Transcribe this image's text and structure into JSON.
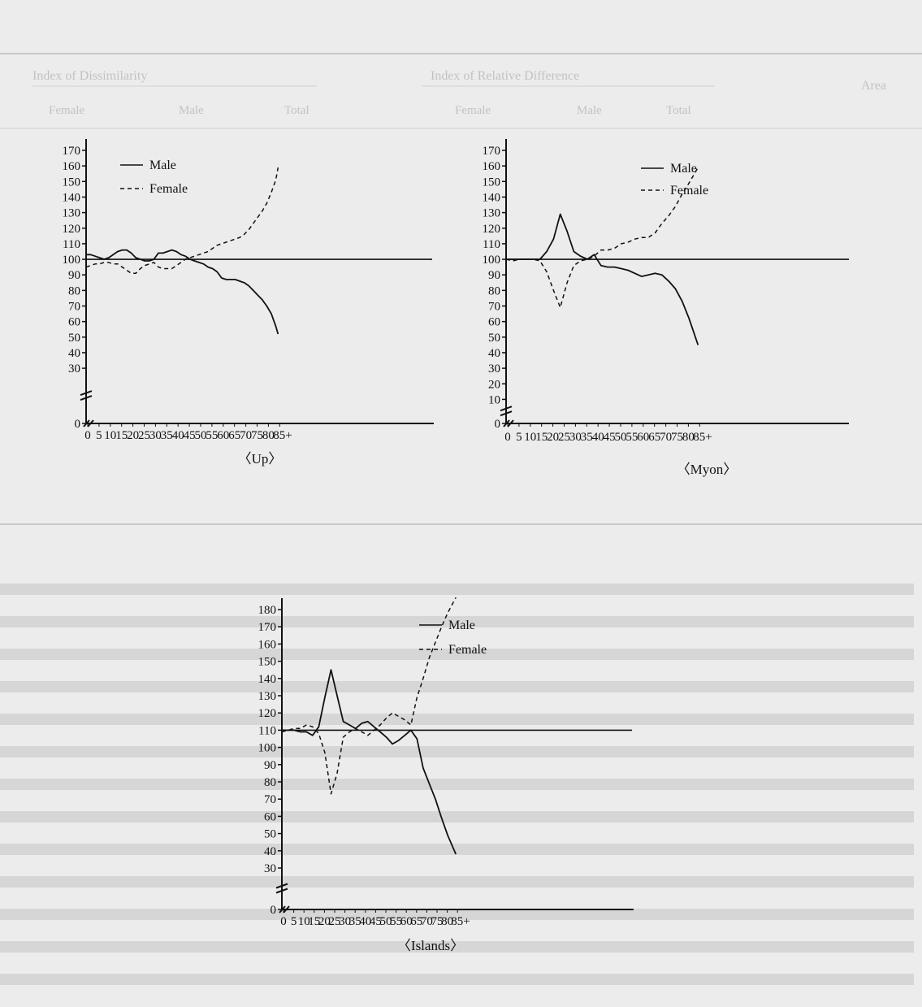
{
  "background": {
    "table_header": [
      "Area",
      "Index of Relative Difference",
      "Index of Dissimilarity"
    ],
    "table_subheader": [
      "Total",
      "Male",
      "Female",
      "Total",
      "Male",
      "Female"
    ]
  },
  "colors": {
    "line": "#111111",
    "background": "#ececec",
    "ghost": "#c4c4c4"
  },
  "chart_data": [
    {
      "type": "line",
      "title": "〈Up〉",
      "x_tick_labels": [
        "0",
        "5",
        "10",
        "15",
        "20",
        "25",
        "30",
        "35",
        "40",
        "45",
        "50",
        "55",
        "60",
        "65",
        "70",
        "75",
        "80",
        "85+"
      ],
      "y_tick_labels": [
        "170",
        "160",
        "150",
        "140",
        "130",
        "120",
        "110",
        "100",
        "90",
        "80",
        "70",
        "60",
        "50",
        "40",
        "30",
        "0"
      ],
      "legend": [
        "Male",
        "Female"
      ],
      "xlim": [
        0,
        85
      ],
      "reference_line": 100,
      "series": [
        {
          "name": "Male",
          "style": "solid",
          "x": [
            0,
            2,
            4,
            6,
            8,
            10,
            12,
            14,
            16,
            18,
            20,
            22,
            24,
            26,
            28,
            30,
            32,
            34,
            36,
            38,
            40,
            42,
            44,
            46,
            48,
            50,
            52,
            54,
            56,
            58,
            60,
            62,
            64,
            66,
            68,
            70,
            72,
            74,
            76,
            78,
            80,
            82,
            84,
            85
          ],
          "y": [
            103,
            103,
            102,
            101,
            100,
            101,
            103,
            105,
            106,
            106,
            104,
            101,
            100,
            99,
            99,
            100,
            104,
            104,
            105,
            106,
            105,
            103,
            102,
            100,
            99,
            98,
            97,
            95,
            94,
            92,
            88,
            87,
            87,
            87,
            86,
            85,
            83,
            80,
            77,
            74,
            70,
            65,
            57,
            52
          ]
        },
        {
          "name": "Female",
          "style": "dashed",
          "x": [
            0,
            2,
            4,
            6,
            8,
            10,
            12,
            14,
            16,
            18,
            20,
            22,
            24,
            26,
            28,
            30,
            32,
            34,
            36,
            38,
            40,
            42,
            44,
            46,
            48,
            50,
            52,
            54,
            56,
            58,
            60,
            62,
            64,
            66,
            68,
            70,
            72,
            74,
            76,
            78,
            80,
            82,
            84,
            85
          ],
          "y": [
            95,
            96,
            97,
            97,
            98,
            98,
            97,
            97,
            95,
            93,
            91,
            91,
            94,
            96,
            97,
            98,
            95,
            94,
            94,
            94,
            96,
            98,
            100,
            101,
            102,
            103,
            104,
            105,
            107,
            109,
            110,
            111,
            112,
            113,
            114,
            116,
            119,
            123,
            127,
            131,
            136,
            143,
            151,
            159
          ]
        }
      ]
    },
    {
      "type": "line",
      "title": "〈Myon〉",
      "x_tick_labels": [
        "0",
        "5",
        "10",
        "15",
        "20",
        "25",
        "30",
        "35",
        "40",
        "45",
        "50",
        "55",
        "60",
        "65",
        "70",
        "75",
        "80",
        "85+"
      ],
      "y_tick_labels": [
        "170",
        "160",
        "150",
        "140",
        "130",
        "120",
        "110",
        "100",
        "90",
        "80",
        "70",
        "60",
        "50",
        "40",
        "30",
        "20",
        "10",
        "0"
      ],
      "legend": [
        "Male",
        "Female"
      ],
      "xlim": [
        0,
        85
      ],
      "reference_line": 100,
      "series": [
        {
          "name": "Male",
          "style": "solid",
          "x": [
            0,
            3,
            6,
            9,
            12,
            15,
            18,
            21,
            24,
            27,
            30,
            33,
            36,
            39,
            42,
            45,
            48,
            51,
            54,
            57,
            60,
            63,
            66,
            69,
            72,
            75,
            78,
            81,
            85
          ],
          "y": [
            100,
            100,
            100,
            100,
            100,
            100,
            105,
            113,
            129,
            118,
            105,
            102,
            100,
            103,
            96,
            95,
            95,
            94,
            93,
            91,
            89,
            90,
            91,
            90,
            86,
            81,
            73,
            62,
            45
          ]
        },
        {
          "name": "Female",
          "style": "dashed",
          "x": [
            0,
            3,
            6,
            9,
            12,
            15,
            18,
            21,
            24,
            27,
            30,
            33,
            36,
            39,
            42,
            45,
            48,
            51,
            54,
            57,
            60,
            63,
            66,
            69,
            72,
            75,
            78,
            81,
            85
          ],
          "y": [
            100,
            99,
            100,
            100,
            100,
            99,
            92,
            80,
            69,
            85,
            96,
            99,
            100,
            102,
            106,
            106,
            107,
            110,
            111,
            113,
            114,
            114,
            117,
            123,
            128,
            134,
            142,
            149,
            159
          ]
        }
      ]
    },
    {
      "type": "line",
      "title": "〈Islands〉",
      "x_tick_labels": [
        "0",
        "5",
        "10",
        "15",
        "20",
        "25",
        "30",
        "35",
        "40",
        "45",
        "50",
        "55",
        "60",
        "65",
        "70",
        "75",
        "80",
        "85+"
      ],
      "y_tick_labels": [
        "180",
        "170",
        "160",
        "150",
        "140",
        "130",
        "120",
        "110",
        "100",
        "90",
        "80",
        "70",
        "60",
        "50",
        "40",
        "30",
        "0"
      ],
      "legend": [
        "Male",
        "Female"
      ],
      "xlim": [
        0,
        85
      ],
      "reference_line": 110,
      "series": [
        {
          "name": "Male",
          "style": "solid",
          "x": [
            0,
            3,
            6,
            9,
            12,
            15,
            18,
            21,
            24,
            27,
            30,
            33,
            36,
            39,
            42,
            45,
            48,
            51,
            54,
            57,
            60,
            63,
            66,
            69,
            72,
            75,
            78,
            81,
            85
          ],
          "y": [
            110,
            110,
            110,
            109,
            109,
            107,
            112,
            129,
            145,
            130,
            115,
            113,
            111,
            114,
            115,
            112,
            109,
            106,
            102,
            104,
            107,
            110,
            105,
            88,
            79,
            70,
            59,
            49,
            38
          ]
        },
        {
          "name": "Female",
          "style": "dashed",
          "x": [
            0,
            3,
            6,
            9,
            12,
            15,
            18,
            21,
            24,
            27,
            30,
            33,
            36,
            39,
            42,
            45,
            48,
            51,
            54,
            57,
            60,
            63,
            66,
            69,
            72,
            75,
            78,
            81,
            85
          ],
          "y": [
            109,
            110,
            111,
            111,
            113,
            112,
            108,
            97,
            73,
            85,
            106,
            109,
            111,
            109,
            107,
            110,
            113,
            117,
            120,
            118,
            116,
            113,
            129,
            140,
            152,
            161,
            170,
            178,
            187
          ]
        }
      ]
    }
  ]
}
